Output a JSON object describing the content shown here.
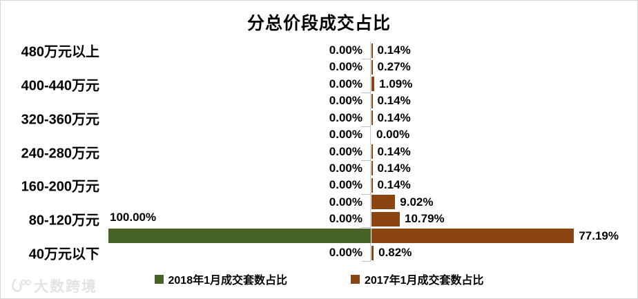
{
  "title": "分总价段成交占比",
  "watermark": {
    "text": "大数跨境"
  },
  "chart_data": {
    "type": "bar",
    "orientation": "horizontal-diverging",
    "title": "分总价段成交占比",
    "gridlines": false,
    "legend_position": "bottom",
    "value_axis": {
      "min": 0,
      "max": 100,
      "unit": "%"
    },
    "categories": [
      "480万元以上",
      "",
      "400-440万元",
      "",
      "320-360万元",
      "",
      "240-280万元",
      "",
      "160-200万元",
      "",
      "80-120万元",
      "",
      "40万元以下"
    ],
    "series": [
      {
        "name": "2018年1月成交套数占比",
        "color": "#466325",
        "side": "left",
        "values": [
          0,
          0,
          0,
          0,
          0,
          0,
          0,
          0,
          0,
          0,
          0,
          100,
          0
        ],
        "labels": [
          "0.00%",
          "0.00%",
          "0.00%",
          "0.00%",
          "0.00%",
          "0.00%",
          "0.00%",
          "0.00%",
          "0.00%",
          "0.00%",
          "0.00%",
          "100.00%",
          "0.00%"
        ]
      },
      {
        "name": "2017年1月成交套数占比",
        "color": "#8B4512",
        "side": "right",
        "values": [
          0.14,
          0.27,
          1.09,
          0.14,
          0.14,
          0.0,
          0.14,
          0.14,
          0.14,
          9.02,
          10.79,
          77.19,
          0.82
        ],
        "labels": [
          "0.14%",
          "0.27%",
          "1.09%",
          "0.14%",
          "0.14%",
          "0.00%",
          "0.14%",
          "0.14%",
          "0.14%",
          "9.02%",
          "10.79%",
          "77.19%",
          "0.82%"
        ]
      }
    ]
  }
}
